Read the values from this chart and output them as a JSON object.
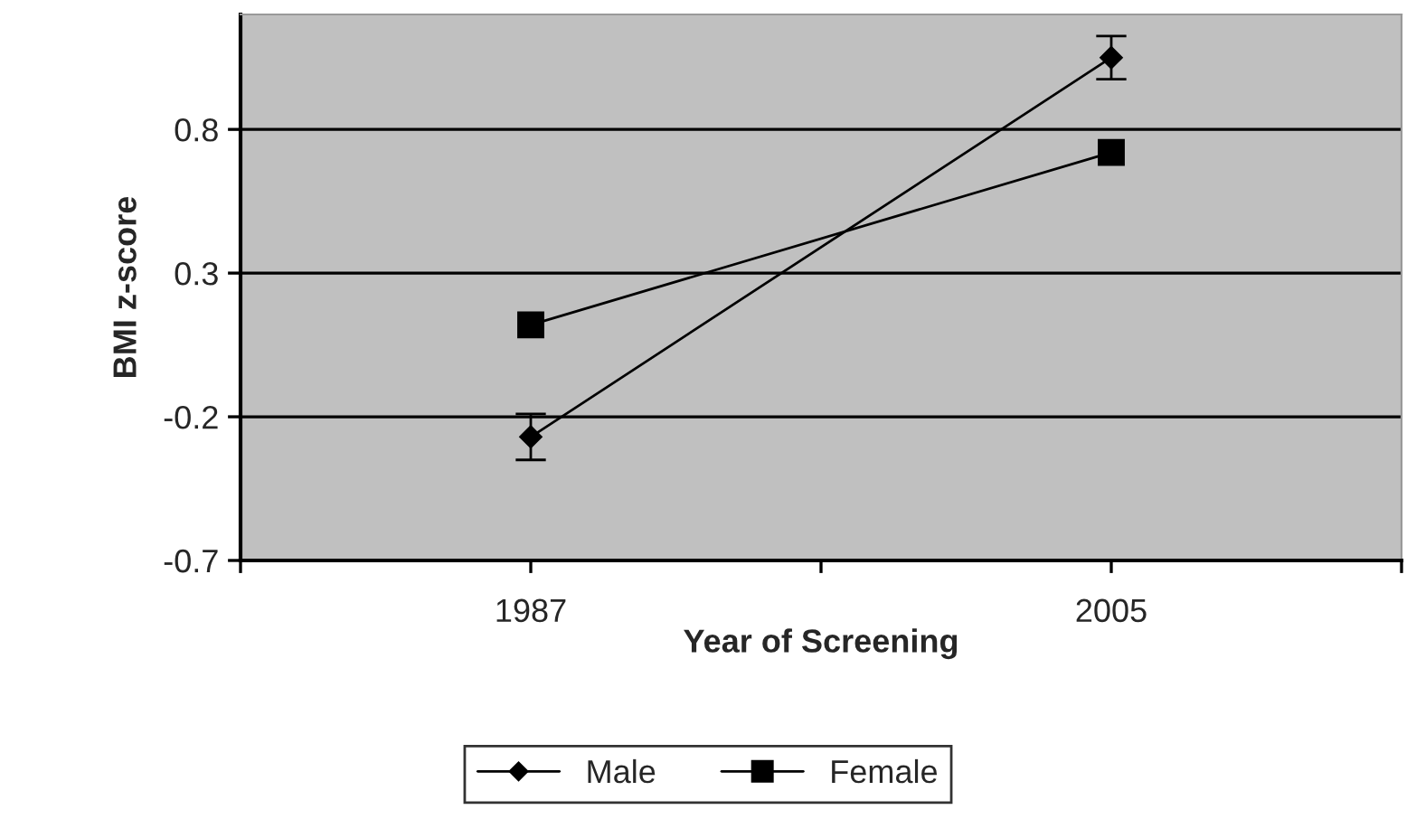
{
  "chart_data": {
    "type": "line",
    "xlabel": "Year of Screening",
    "ylabel": "BMI z-score",
    "x": [
      1987,
      2005
    ],
    "series": [
      {
        "name": "Male",
        "color": "#000000",
        "marker": "diamond",
        "values": [
          -0.27,
          1.05
        ],
        "errors": [
          0.08,
          0.075
        ]
      },
      {
        "name": "Female",
        "color": "#000000",
        "marker": "square",
        "values": [
          0.12,
          0.72
        ]
      }
    ],
    "xlim": [
      1978,
      2014
    ],
    "xticks": [
      {
        "value": 1978,
        "label": null
      },
      1987,
      {
        "value": 1996,
        "label": null
      },
      2005,
      {
        "value": 2014,
        "label": null
      }
    ],
    "ylim": [
      -0.7,
      1.2
    ],
    "yticks": [
      -0.7,
      -0.2,
      0.3,
      0.8
    ],
    "grid": "y",
    "legend": "bottom",
    "line_style": "solid"
  }
}
